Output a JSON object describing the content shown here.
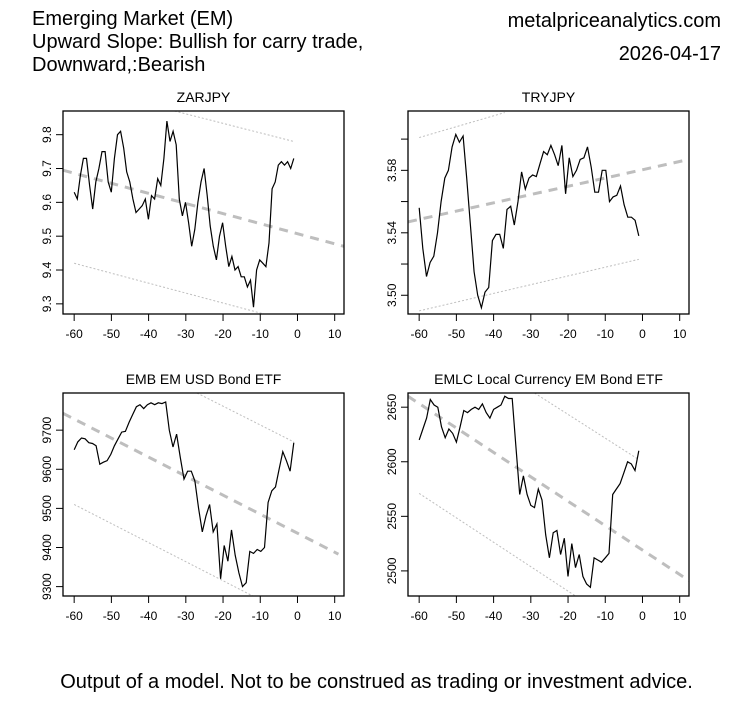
{
  "header": {
    "title_lines": [
      "Emerging Market (EM)",
      "Upward Slope: Bullish for carry trade,",
      "Downward,:Bearish"
    ],
    "site": "metalpriceanalytics.com",
    "date": "2026-04-17"
  },
  "footer": "Output of a model. Not to be construed as trading or investment advice.",
  "colors": {
    "series": "#000000",
    "trend": "#bebebe",
    "band": "#bebebe"
  },
  "chart_data": [
    {
      "type": "line",
      "title": "ZARJPY",
      "xlim": [
        -63,
        12.5
      ],
      "ylim": [
        9.27,
        9.87
      ],
      "xticks": [
        -60,
        -50,
        -40,
        -30,
        -20,
        -10,
        0,
        10
      ],
      "xtick_labels": [
        "-60",
        "-50",
        "-40",
        "-30",
        "-20",
        "-10",
        "0",
        "10"
      ],
      "yticks": [
        9.3,
        9.4,
        9.5,
        9.6,
        9.7,
        9.8
      ],
      "ytick_labels": [
        "9.3",
        "9.4",
        "9.5",
        "9.6",
        "9.7",
        "9.8"
      ],
      "x_start": -60,
      "values": [
        9.63,
        9.61,
        9.68,
        9.73,
        9.73,
        9.65,
        9.58,
        9.66,
        9.7,
        9.75,
        9.75,
        9.66,
        9.63,
        9.73,
        9.8,
        9.81,
        9.76,
        9.69,
        9.66,
        9.61,
        9.57,
        9.58,
        9.59,
        9.61,
        9.55,
        9.62,
        9.61,
        9.67,
        9.65,
        9.73,
        9.84,
        9.78,
        9.81,
        9.77,
        9.61,
        9.56,
        9.6,
        9.54,
        9.47,
        9.52,
        9.6,
        9.66,
        9.7,
        9.62,
        9.53,
        9.47,
        9.43,
        9.5,
        9.54,
        9.47,
        9.41,
        9.44,
        9.4,
        9.41,
        9.38,
        9.38,
        9.35,
        9.37,
        9.29,
        9.4,
        9.43,
        9.42,
        9.41,
        9.48,
        9.64,
        9.66,
        9.71,
        9.72,
        9.71,
        9.72,
        9.7,
        9.73
      ],
      "trend": {
        "x": [
          -63,
          12.5
        ],
        "y": [
          9.695,
          9.47
        ]
      },
      "upper_band": {
        "x": [
          -33,
          -1
        ],
        "y": [
          9.87,
          9.78
        ]
      },
      "lower_band": {
        "x": [
          -60,
          -9
        ],
        "y": [
          9.42,
          9.27
        ]
      }
    },
    {
      "type": "line",
      "title": "TRYJPY",
      "xlim": [
        -63,
        12.5
      ],
      "ylim": [
        3.488,
        3.618
      ],
      "xticks": [
        -60,
        -50,
        -40,
        -30,
        -20,
        -10,
        0,
        10
      ],
      "xtick_labels": [
        "-60",
        "-50",
        "-40",
        "-30",
        "-20",
        "-10",
        "0",
        "10"
      ],
      "yticks": [
        3.5,
        3.52,
        3.54,
        3.56,
        3.58,
        3.6
      ],
      "ytick_labels": [
        "3.50",
        "",
        "3.54",
        "",
        "3.58",
        ""
      ],
      "x_start": -60,
      "values": [
        3.556,
        3.53,
        3.512,
        3.521,
        3.525,
        3.54,
        3.56,
        3.575,
        3.58,
        3.595,
        3.603,
        3.598,
        3.602,
        3.575,
        3.545,
        3.515,
        3.5,
        3.492,
        3.502,
        3.505,
        3.535,
        3.539,
        3.539,
        3.53,
        3.555,
        3.557,
        3.545,
        3.56,
        3.579,
        3.568,
        3.575,
        3.577,
        3.576,
        3.584,
        3.592,
        3.59,
        3.596,
        3.59,
        3.583,
        3.596,
        3.565,
        3.588,
        3.576,
        3.58,
        3.587,
        3.588,
        3.595,
        3.582,
        3.566,
        3.566,
        3.58,
        3.58,
        3.56,
        3.563,
        3.564,
        3.57,
        3.558,
        3.55,
        3.55,
        3.548,
        3.538
      ],
      "trend": {
        "x": [
          -63,
          12.5
        ],
        "y": [
          3.547,
          3.587
        ]
      },
      "upper_band": {
        "x": [
          -60,
          -37
        ],
        "y": [
          3.601,
          3.617
        ]
      },
      "lower_band": {
        "x": [
          -60,
          -1
        ],
        "y": [
          3.49,
          3.523
        ]
      }
    },
    {
      "type": "line",
      "title": "EMB EM USD Bond ETF",
      "xlim": [
        -63,
        12.5
      ],
      "ylim": [
        9276,
        9795
      ],
      "xticks": [
        -60,
        -50,
        -40,
        -30,
        -20,
        -10,
        0,
        10
      ],
      "xtick_labels": [
        "-60",
        "-50",
        "-40",
        "-30",
        "-20",
        "-10",
        "0",
        "10"
      ],
      "yticks": [
        9300,
        9400,
        9500,
        9600,
        9700
      ],
      "ytick_labels": [
        "9300",
        "9400",
        "9500",
        "9600",
        "9700"
      ],
      "x_start": -60,
      "values": [
        9650,
        9670,
        9680,
        9678,
        9668,
        9666,
        9660,
        9613,
        9618,
        9622,
        9638,
        9660,
        9678,
        9695,
        9697,
        9720,
        9740,
        9760,
        9765,
        9755,
        9765,
        9770,
        9765,
        9770,
        9768,
        9772,
        9700,
        9657,
        9690,
        9630,
        9575,
        9595,
        9595,
        9570,
        9500,
        9440,
        9480,
        9510,
        9440,
        9460,
        9320,
        9405,
        9365,
        9445,
        9380,
        9335,
        9300,
        9310,
        9390,
        9385,
        9395,
        9390,
        9400,
        9515,
        9545,
        9555,
        9600,
        9645,
        9622,
        9595,
        9668
      ],
      "trend": {
        "x": [
          -63,
          11
        ],
        "y": [
          9743,
          9383
        ]
      },
      "upper_band": {
        "x": [
          -27,
          -1
        ],
        "y": [
          9795,
          9670
        ]
      },
      "lower_band": {
        "x": [
          -60,
          -12
        ],
        "y": [
          9510,
          9276
        ]
      }
    },
    {
      "type": "line",
      "title": "EMLC Local Currency EM Bond ETF",
      "xlim": [
        -63,
        12.5
      ],
      "ylim": [
        2477,
        2663
      ],
      "xticks": [
        -60,
        -50,
        -40,
        -30,
        -20,
        -10,
        0,
        10
      ],
      "xtick_labels": [
        "-60",
        "-50",
        "-40",
        "-30",
        "-20",
        "-10",
        "0",
        "10"
      ],
      "yticks": [
        2500,
        2550,
        2600,
        2650
      ],
      "ytick_labels": [
        "2500",
        "2550",
        "2600",
        "2650"
      ],
      "x_start": -60,
      "values": [
        2620,
        2630,
        2640,
        2657,
        2652,
        2650,
        2632,
        2622,
        2630,
        2626,
        2618,
        2632,
        2647,
        2645,
        2648,
        2650,
        2648,
        2653,
        2645,
        2640,
        2648,
        2650,
        2652,
        2660,
        2658,
        2658,
        2614,
        2570,
        2587,
        2570,
        2560,
        2558,
        2575,
        2565,
        2533,
        2512,
        2535,
        2537,
        2515,
        2530,
        2495,
        2525,
        2503,
        2515,
        2495,
        2488,
        2485,
        2512,
        2510,
        2508,
        2512,
        2516,
        2570,
        2575,
        2580,
        2590,
        2600,
        2598,
        2592,
        2610
      ],
      "trend": {
        "x": [
          -63,
          13
        ],
        "y": [
          2660,
          2490
        ]
      },
      "upper_band": {
        "x": [
          -29,
          -1
        ],
        "y": [
          2663,
          2602
        ]
      },
      "lower_band": {
        "x": [
          -60,
          -18
        ],
        "y": [
          2571,
          2477
        ]
      }
    }
  ]
}
